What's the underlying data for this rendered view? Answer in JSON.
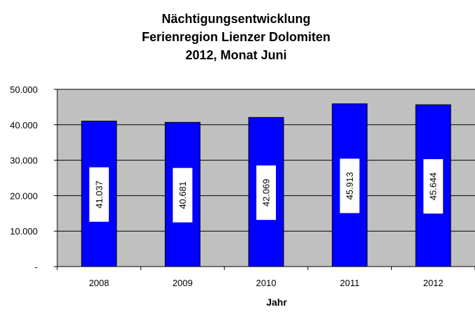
{
  "chart_data": {
    "type": "bar",
    "title_lines": [
      "Nächtigungsentwicklung",
      "Ferienregion Lienzer Dolomiten",
      "2012, Monat Juni"
    ],
    "xlabel": "Jahr",
    "ylabel": "",
    "categories": [
      "2008",
      "2009",
      "2010",
      "2011",
      "2012"
    ],
    "values": [
      41037,
      40681,
      42069,
      45913,
      45644
    ],
    "value_labels": [
      "41.037",
      "40.681",
      "42.069",
      "45.913",
      "45.644"
    ],
    "ylim": [
      0,
      50000
    ],
    "yticks": [
      0,
      10000,
      20000,
      30000,
      40000,
      50000
    ],
    "ytick_labels": [
      "-",
      "10.000",
      "20.000",
      "30.000",
      "40.000",
      "50.000"
    ],
    "grid": true,
    "legend": "none",
    "colors": {
      "bar": "#0000FF",
      "plot_bg": "#C0C0C0",
      "gridline": "#000000",
      "label_box": "#FFFFFF"
    }
  }
}
